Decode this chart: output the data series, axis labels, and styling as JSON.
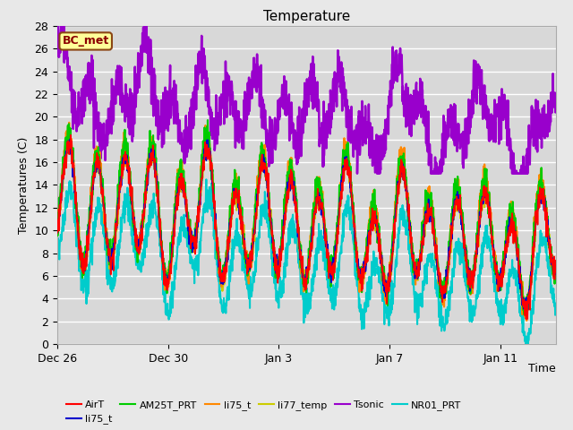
{
  "title": "Temperature",
  "ylabel": "Temperatures (C)",
  "xlabel": "Time",
  "ylim": [
    0,
    28
  ],
  "yticks": [
    0,
    2,
    4,
    6,
    8,
    10,
    12,
    14,
    16,
    18,
    20,
    22,
    24,
    26,
    28
  ],
  "xtick_labels": [
    "Dec 26",
    "Dec 30",
    "Jan 3",
    "Jan 7",
    "Jan 11"
  ],
  "bg_color": "#e8e8e8",
  "plot_bg": "#d8d8d8",
  "grid_color": "#ffffff",
  "annotation": {
    "text": "BC_met",
    "facecolor": "#ffff99",
    "edgecolor": "#8b4513"
  },
  "legend": [
    {
      "label": "AirT",
      "color": "#ff0000"
    },
    {
      "label": "li75_t",
      "color": "#0000cc"
    },
    {
      "label": "AM25T_PRT",
      "color": "#00cc00"
    },
    {
      "label": "li75_t",
      "color": "#ff8800"
    },
    {
      "label": "li77_temp",
      "color": "#cccc00"
    },
    {
      "label": "Tsonic",
      "color": "#9900cc"
    },
    {
      "label": "NR01_PRT",
      "color": "#00cccc"
    }
  ]
}
